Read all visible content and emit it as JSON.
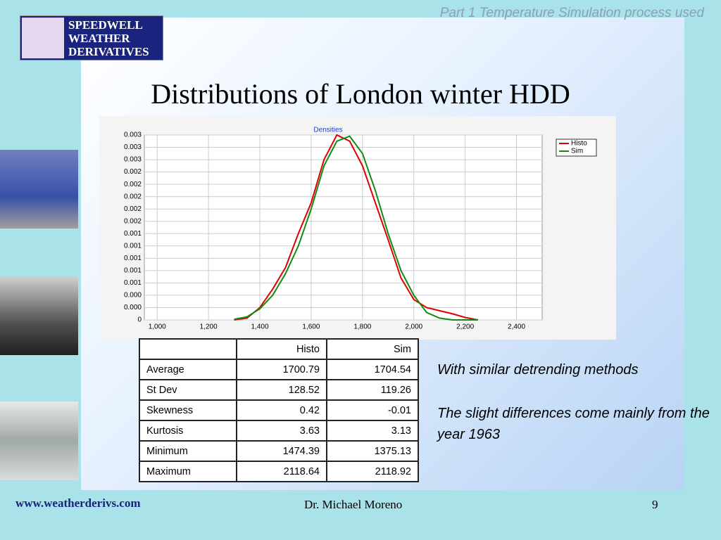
{
  "header": {
    "note": "Part 1 Temperature Simulation process used",
    "logo": [
      "SPEEDWELL",
      "WEATHER",
      "DERIVATIVES"
    ],
    "title": "Distributions of London winter HDD"
  },
  "chart_data": {
    "type": "line",
    "title": "Densities",
    "x": [
      1300,
      1350,
      1400,
      1450,
      1500,
      1550,
      1600,
      1650,
      1700,
      1750,
      1800,
      1850,
      1900,
      1950,
      2000,
      2050,
      2100,
      2150,
      2200,
      2250
    ],
    "series": [
      {
        "name": "Histo",
        "color": "#e00000",
        "values": [
          0,
          3e-05,
          0.0002,
          0.0005,
          0.00085,
          0.0014,
          0.0019,
          0.0026,
          0.003,
          0.0029,
          0.0025,
          0.0019,
          0.0013,
          0.00068,
          0.00033,
          0.0002,
          0.00015,
          0.0001,
          4e-05,
          0
        ]
      },
      {
        "name": "Sim",
        "color": "#108a10",
        "values": [
          1e-05,
          5e-05,
          0.00018,
          0.0004,
          0.00075,
          0.0012,
          0.0018,
          0.0025,
          0.0029,
          0.00298,
          0.0027,
          0.0021,
          0.0014,
          0.0008,
          0.0004,
          0.00012,
          3e-05,
          0,
          0,
          0
        ]
      }
    ],
    "xlim": [
      950,
      2500
    ],
    "xticks": [
      {
        "value": 1000,
        "label": "1,000"
      },
      {
        "value": 1200,
        "label": "1,200"
      },
      {
        "value": 1400,
        "label": "1,400"
      },
      {
        "value": 1600,
        "label": "1,600"
      },
      {
        "value": 1800,
        "label": "1,800"
      },
      {
        "value": 2000,
        "label": "2,000"
      },
      {
        "value": 2200,
        "label": "2,200"
      },
      {
        "value": 2400,
        "label": "2,400"
      }
    ],
    "ylim": [
      0,
      0.003
    ],
    "yticks": [
      0,
      {
        "value": 0.0002,
        "label": "0.000"
      },
      {
        "value": 0.0004,
        "label": "0.000"
      },
      {
        "value": 0.0006,
        "label": "0.001"
      },
      {
        "value": 0.0008,
        "label": "0.001"
      },
      {
        "value": 0.001,
        "label": "0.001"
      },
      {
        "value": 0.0012,
        "label": "0.001"
      },
      {
        "value": 0.0014,
        "label": "0.001"
      },
      {
        "value": 0.0016,
        "label": "0.002"
      },
      {
        "value": 0.0018,
        "label": "0.002"
      },
      {
        "value": 0.002,
        "label": "0.002"
      },
      {
        "value": 0.0022,
        "label": "0.002"
      },
      {
        "value": 0.0024,
        "label": "0.002"
      },
      {
        "value": 0.0026,
        "label": "0.003"
      },
      {
        "value": 0.0028,
        "label": "0.003"
      },
      {
        "value": 0.003,
        "label": "0.003"
      }
    ],
    "grid": true,
    "legend": "upper-right"
  },
  "table": {
    "header": [
      "Histo",
      "Sim"
    ],
    "rows": [
      [
        "Average",
        "1700.79",
        "1704.54"
      ],
      [
        "St Dev",
        "128.52",
        "119.26"
      ],
      [
        "Skewness",
        "0.42",
        "-0.01"
      ],
      [
        "Kurtosis",
        "3.63",
        "3.13"
      ],
      [
        "Minimum",
        "1474.39",
        "1375.13"
      ],
      [
        "Maximum",
        "2118.64",
        "2118.92"
      ]
    ]
  },
  "notes": [
    "With similar detrending methods",
    "The slight differences come mainly from the year 1963"
  ],
  "footer": {
    "url": "www.weatherderivs.com",
    "author": "Dr. Michael Moreno",
    "page": "9"
  }
}
